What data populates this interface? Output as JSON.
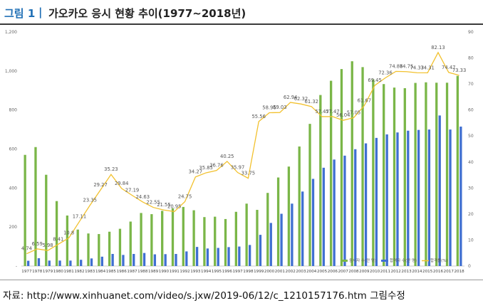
{
  "header": {
    "figure_label": "그림 1",
    "separator": "|",
    "title": "가오카오 응시 현황 추이(1977~2018년)"
  },
  "source": "자료:  http://www.xinhuanet.com/video/s.jxw/2019-06/12/c_1210157176.htm 그림수정",
  "colors": {
    "applicants": "#7ab648",
    "admitted": "#3f6fd1",
    "rate": "#f2c12e"
  },
  "chart_data": {
    "type": "bar+line",
    "categories": [
      "1977",
      "1978",
      "1979",
      "1980",
      "1981",
      "1982",
      "1983",
      "1984",
      "1985",
      "1986",
      "1987",
      "1988",
      "1989",
      "1990",
      "1991",
      "1992",
      "1993",
      "1994",
      "1995",
      "1996",
      "1997",
      "1998",
      "1999",
      "2000",
      "2001",
      "2002",
      "2003",
      "2004",
      "2005",
      "2006",
      "2007",
      "2008",
      "2009",
      "2010",
      "2011",
      "2012",
      "2013",
      "2014",
      "2015",
      "2016",
      "2017",
      "2018"
    ],
    "series": [
      {
        "name": "응시자 수(만 명)",
        "axis": "left",
        "kind": "bar",
        "values": [
          570,
          610,
          468,
          333,
          259,
          187,
          167,
          164,
          176,
          191,
          228,
          272,
          266,
          283,
          296,
          303,
          286,
          251,
          253,
          241,
          278,
          320,
          288,
          375,
          454,
          510,
          613,
          729,
          877,
          950,
          1010,
          1050,
          1020,
          957,
          933,
          915,
          912,
          939,
          942,
          940,
          940,
          975
        ]
      },
      {
        "name": "합격자 수(만 명)",
        "axis": "left",
        "kind": "bar",
        "values": [
          27,
          40,
          28,
          28,
          28,
          32,
          39,
          48,
          62,
          57,
          62,
          67,
          60,
          61,
          62,
          75,
          98,
          90,
          93,
          97,
          100,
          108,
          160,
          221,
          268,
          320,
          382,
          447,
          504,
          546,
          566,
          599,
          629,
          657,
          675,
          685,
          694,
          698,
          700,
          772,
          700,
          715
        ]
      },
      {
        "name": "합격률(%)",
        "axis": "right",
        "kind": "line",
        "values": [
          4.74,
          6.59,
          5.98,
          8.41,
          10.8,
          17.11,
          23.35,
          29.27,
          35.23,
          29.84,
          27.19,
          24.63,
          22.55,
          21.55,
          20.95,
          24.75,
          34.27,
          35.85,
          36.76,
          40.25,
          35.97,
          33.75,
          55.56,
          58.96,
          59.03,
          62.94,
          62.32,
          61.32,
          57.47,
          57.47,
          56.04,
          57.05,
          61.67,
          69.45,
          72.36,
          74.86,
          74.75,
          74.33,
          74.31,
          82.13,
          74.47,
          73.33
        ]
      }
    ],
    "rate_labels": [
      "4.74",
      "6.59",
      "5.98",
      "8.41",
      "10.8",
      "17.11",
      "23.35",
      "29.27",
      "35.23",
      "29.84",
      "27.19",
      "24.63",
      "22.55",
      "21.55",
      "20.95",
      "24.75",
      "34.27",
      "35.85",
      "36.76",
      "40.25",
      "35.97",
      "33.75",
      "55.56",
      "58.96",
      "59.03",
      "62.94",
      "62.32",
      "61.32",
      "57.47",
      "57.47",
      "56.04",
      "57.05",
      "61.67",
      "69.45",
      "72.36",
      "74.86",
      "74.75",
      "74.33",
      "74.31",
      "82.13",
      "74.47",
      "73.33"
    ],
    "y_left": {
      "min": 0,
      "max": 1200,
      "ticks": [
        "-",
        "200",
        "400",
        "600",
        "800",
        "1,000",
        "1,200"
      ]
    },
    "y_right": {
      "min": 0,
      "max": 90,
      "ticks": [
        "0",
        "10",
        "20",
        "30",
        "40",
        "50",
        "60",
        "70",
        "80",
        "90"
      ]
    },
    "legend": [
      "응시자 수(만 명)",
      "합격자 수(만 명)",
      "합격률(%)"
    ]
  }
}
